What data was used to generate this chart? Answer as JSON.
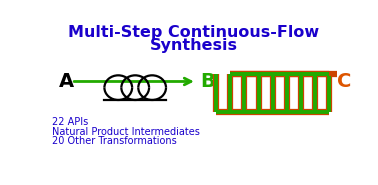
{
  "title_line1": "Multi-Step Continuous-Flow",
  "title_line2": "Synthesis",
  "title_color": "#1a00cc",
  "title_fontsize": 11.5,
  "label_A": "A",
  "label_B": "B",
  "label_C": "C",
  "label_color_A": "black",
  "label_color_B": "#22aa00",
  "label_color_C": "#dd5500",
  "label_fontsize": 14,
  "text_lines": [
    "22 APIs",
    "Natural Product Intermediates",
    "20 Other Transformations"
  ],
  "text_color": "#1a00cc",
  "text_fontsize": 7.0,
  "arrow_color": "#22aa00",
  "tube_green": "#22aa00",
  "tube_orange": "#cc4400",
  "coil_n_loops": 8,
  "bg_color": "white",
  "coil_ellipse_color": "black",
  "coil_ellipse_lw": 1.6
}
